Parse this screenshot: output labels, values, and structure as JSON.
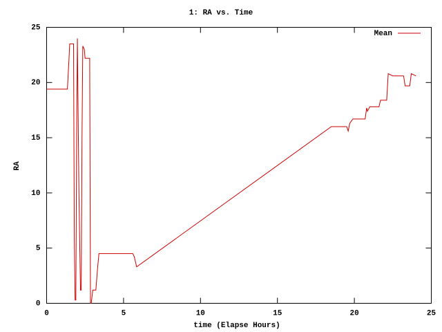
{
  "chart_data": {
    "type": "line",
    "title": "1: RA vs. Time",
    "x_label": "time (Elapse Hours)",
    "y_label": "RA",
    "xlim": [
      0,
      25
    ],
    "ylim": [
      0,
      25
    ],
    "xticks": [
      0,
      5,
      10,
      15,
      20,
      25
    ],
    "yticks": [
      0,
      5,
      10,
      15,
      20,
      25
    ],
    "grid": false,
    "legend_position": "upper-right",
    "series": [
      {
        "name": "Mean",
        "color": "#cc0000",
        "x": [
          0,
          1.35,
          1.45,
          1.5,
          1.75,
          1.8,
          1.85,
          1.9,
          1.95,
          2.0,
          2.1,
          2.2,
          2.25,
          2.3,
          2.35,
          2.45,
          2.5,
          2.8,
          2.85,
          2.9,
          3.0,
          3.2,
          3.3,
          3.4,
          5.6,
          5.7,
          5.75,
          5.85,
          18.5,
          19.5,
          19.55,
          19.6,
          19.7,
          19.8,
          19.9,
          20.7,
          20.75,
          20.8,
          20.85,
          21.0,
          21.6,
          21.7,
          22.1,
          22.2,
          22.5,
          23.2,
          23.3,
          23.6,
          23.7,
          24.0
        ],
        "values": [
          19.4,
          19.4,
          22.0,
          23.5,
          23.5,
          6.0,
          0.3,
          0.3,
          15.0,
          24.0,
          10.0,
          1.2,
          1.2,
          15.0,
          23.3,
          23.0,
          22.2,
          22.2,
          0.0,
          0.0,
          1.2,
          1.2,
          3.0,
          4.5,
          4.5,
          4.2,
          3.9,
          3.3,
          16.0,
          16.0,
          15.8,
          15.6,
          16.3,
          16.5,
          16.7,
          16.7,
          17.2,
          17.7,
          17.4,
          17.8,
          17.8,
          18.4,
          18.4,
          20.8,
          20.6,
          20.6,
          19.7,
          19.7,
          20.8,
          20.6
        ]
      }
    ]
  }
}
